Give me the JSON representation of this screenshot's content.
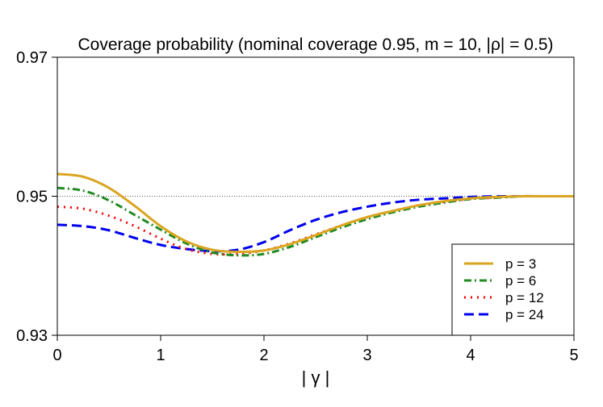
{
  "chart_data": {
    "type": "line",
    "title": "Coverage probability (nominal coverage 0.95, m = 10, |ρ| = 0.5)",
    "xlabel": "| γ |",
    "ylabel": "",
    "xlim": [
      0,
      5
    ],
    "ylim": [
      0.93,
      0.97
    ],
    "xticks": [
      0,
      1,
      2,
      3,
      4,
      5
    ],
    "xtick_labels": [
      "0",
      "1",
      "2",
      "3",
      "4",
      "5"
    ],
    "yticks": [
      0.93,
      0.95,
      0.97
    ],
    "ytick_labels": [
      "0.93",
      "0.95",
      "0.97"
    ],
    "reference_line": {
      "y": 0.95,
      "style": "dotted"
    },
    "legend_position": "bottom-right",
    "grid": false,
    "x": [
      0,
      0.25,
      0.5,
      0.75,
      1,
      1.25,
      1.5,
      1.75,
      2,
      2.25,
      2.5,
      2.75,
      3,
      3.25,
      3.5,
      3.75,
      4,
      4.25,
      4.5,
      4.75,
      5
    ],
    "series": [
      {
        "name": "p = 3",
        "color": "#DAA520",
        "dash": "solid",
        "values": [
          0.9532,
          0.9528,
          0.9512,
          0.9486,
          0.9457,
          0.9435,
          0.9423,
          0.942,
          0.9422,
          0.9431,
          0.9444,
          0.9458,
          0.947,
          0.9479,
          0.9487,
          0.9493,
          0.9497,
          0.9499,
          0.95,
          0.95,
          0.95
        ]
      },
      {
        "name": "p = 6",
        "color": "#228B22",
        "dash": "dashdot",
        "values": [
          0.9512,
          0.9508,
          0.9494,
          0.9473,
          0.9452,
          0.9432,
          0.9419,
          0.9415,
          0.9417,
          0.9427,
          0.9441,
          0.9455,
          0.9467,
          0.9477,
          0.9485,
          0.9491,
          0.9496,
          0.9498,
          0.95,
          0.95,
          0.95
        ]
      },
      {
        "name": "p = 12",
        "color": "#FF0000",
        "dash": "dotted",
        "values": [
          0.9485,
          0.9482,
          0.9472,
          0.9457,
          0.9439,
          0.9424,
          0.9417,
          0.9417,
          0.9422,
          0.9432,
          0.9445,
          0.9458,
          0.947,
          0.9479,
          0.9487,
          0.9492,
          0.9496,
          0.9498,
          0.95,
          0.95,
          0.95
        ]
      },
      {
        "name": "p = 24",
        "color": "#0000EE",
        "dash": "dashed",
        "values": [
          0.9459,
          0.9457,
          0.9451,
          0.944,
          0.943,
          0.9424,
          0.9421,
          0.9423,
          0.9434,
          0.9451,
          0.9466,
          0.9477,
          0.9485,
          0.9491,
          0.9495,
          0.9497,
          0.9499,
          0.95,
          0.95,
          0.95,
          0.95
        ]
      }
    ]
  }
}
